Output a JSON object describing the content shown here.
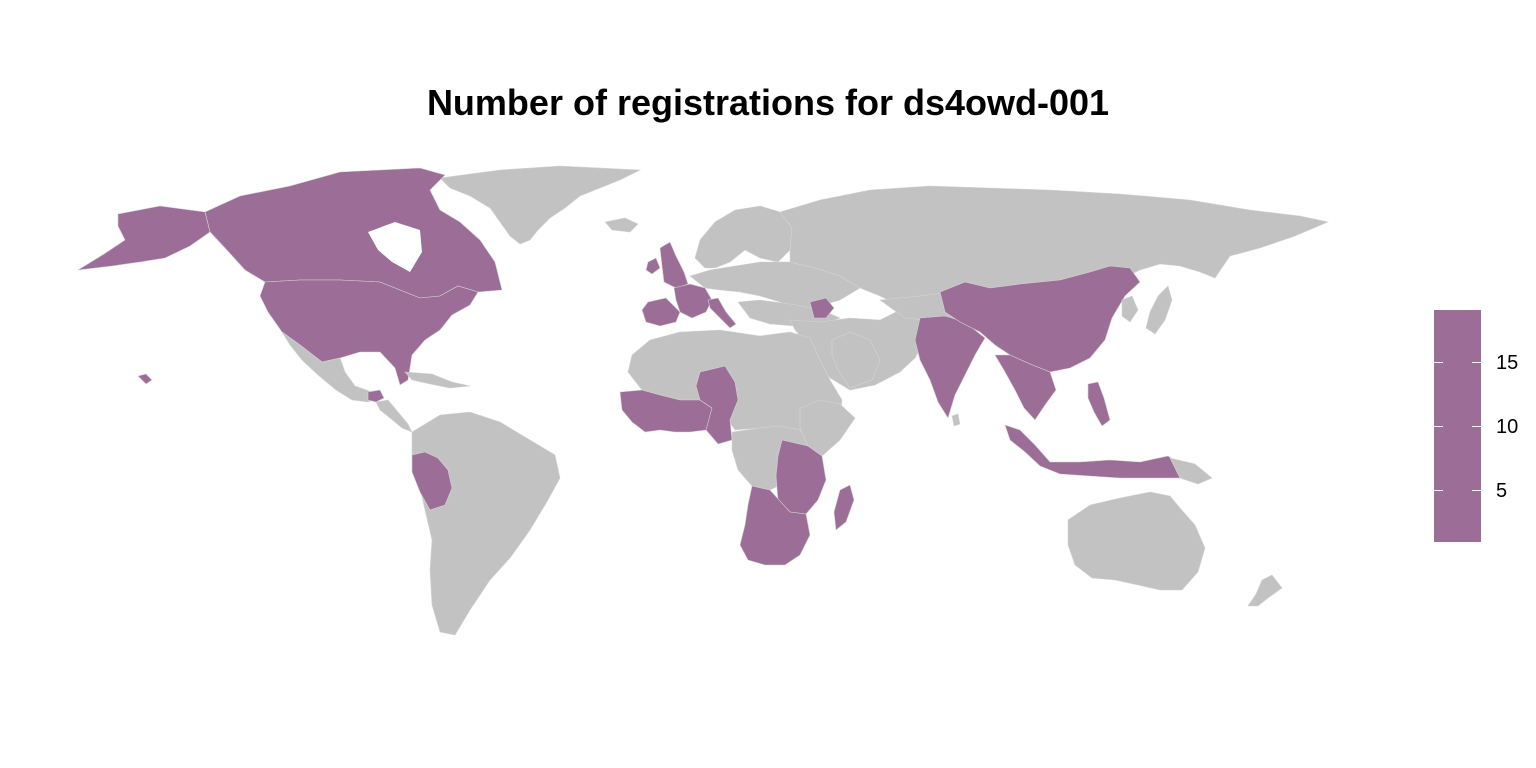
{
  "title": "Number of registrations for ds4owd-001",
  "colors": {
    "highlight": "#9b6d97",
    "base": "#c2c2c2",
    "border": "#d4d4d4",
    "background": "#ffffff"
  },
  "legend": {
    "ticks": [
      {
        "label": "15",
        "value": 15
      },
      {
        "label": "10",
        "value": 10
      },
      {
        "label": "5",
        "value": 5
      }
    ]
  },
  "regions": [
    {
      "name": "canada",
      "highlighted": true
    },
    {
      "name": "united-states",
      "highlighted": true
    },
    {
      "name": "alaska",
      "highlighted": true
    },
    {
      "name": "greenland",
      "highlighted": false
    },
    {
      "name": "mexico",
      "highlighted": false
    },
    {
      "name": "guatemala",
      "highlighted": true
    },
    {
      "name": "central-america",
      "highlighted": false
    },
    {
      "name": "south-america",
      "highlighted": false
    },
    {
      "name": "peru",
      "highlighted": true
    },
    {
      "name": "united-kingdom",
      "highlighted": true
    },
    {
      "name": "ireland",
      "highlighted": true
    },
    {
      "name": "france",
      "highlighted": true
    },
    {
      "name": "spain-portugal",
      "highlighted": true
    },
    {
      "name": "italy",
      "highlighted": true
    },
    {
      "name": "europe-other",
      "highlighted": false
    },
    {
      "name": "scandinavia",
      "highlighted": false
    },
    {
      "name": "russia",
      "highlighted": false
    },
    {
      "name": "syria",
      "highlighted": true
    },
    {
      "name": "middle-east",
      "highlighted": false
    },
    {
      "name": "north-africa",
      "highlighted": false
    },
    {
      "name": "west-africa",
      "highlighted": true
    },
    {
      "name": "nigeria-niger",
      "highlighted": true
    },
    {
      "name": "east-africa",
      "highlighted": true
    },
    {
      "name": "central-africa",
      "highlighted": false
    },
    {
      "name": "southern-africa",
      "highlighted": true
    },
    {
      "name": "madagascar",
      "highlighted": true
    },
    {
      "name": "india",
      "highlighted": true
    },
    {
      "name": "china",
      "highlighted": true
    },
    {
      "name": "southeast-asia",
      "highlighted": true
    },
    {
      "name": "philippines",
      "highlighted": true
    },
    {
      "name": "indonesia",
      "highlighted": true
    },
    {
      "name": "japan",
      "highlighted": false
    },
    {
      "name": "australia",
      "highlighted": false
    },
    {
      "name": "new-zealand",
      "highlighted": false
    }
  ]
}
